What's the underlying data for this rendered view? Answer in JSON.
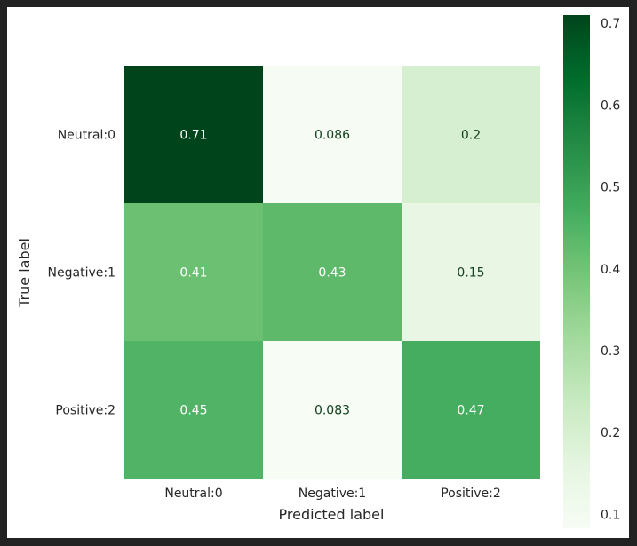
{
  "chart_data": {
    "type": "heatmap",
    "xlabel": "Predicted label",
    "ylabel": "True label",
    "x_categories": [
      "Neutral:0",
      "Negative:1",
      "Positive:2"
    ],
    "y_categories": [
      "Neutral:0",
      "Negative:1",
      "Positive:2"
    ],
    "values": [
      [
        0.71,
        0.086,
        0.2
      ],
      [
        0.41,
        0.43,
        0.15
      ],
      [
        0.45,
        0.083,
        0.47
      ]
    ],
    "value_labels": [
      [
        "0.71",
        "0.086",
        "0.2"
      ],
      [
        "0.41",
        "0.43",
        "0.15"
      ],
      [
        "0.45",
        "0.083",
        "0.47"
      ]
    ],
    "colorscale": "Greens",
    "colorbar": {
      "range": [
        0.083,
        0.71
      ],
      "ticks": [
        0.1,
        0.2,
        0.3,
        0.4,
        0.5,
        0.6,
        0.7
      ],
      "tick_labels": [
        "0.1",
        "0.2",
        "0.3",
        "0.4",
        "0.5",
        "0.6",
        "0.7"
      ]
    },
    "grid": false,
    "legend": "colorbar right"
  }
}
